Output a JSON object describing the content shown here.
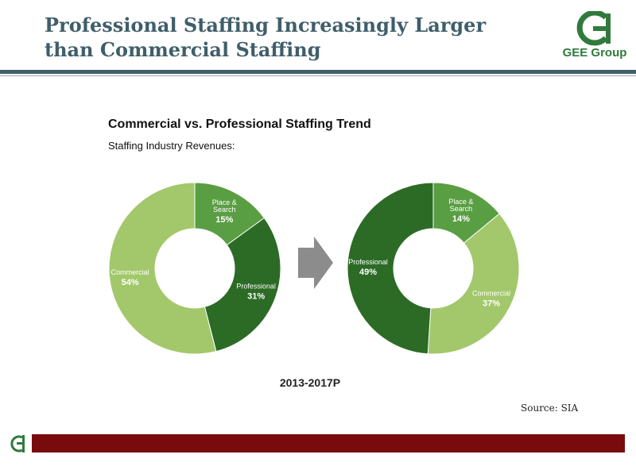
{
  "header": {
    "title_line1": "Professional Staffing Increasingly Larger",
    "title_line2": "than Commercial Staffing",
    "logo_text": "GEE Group"
  },
  "colors": {
    "title": "#3f5e6a",
    "place_search": "#5a9e44",
    "professional": "#2c6b26",
    "commercial": "#a2c86b",
    "arrow": "#8c8c8c",
    "footer_bar": "#7a0b0d",
    "logo_green": "#2f7a3c"
  },
  "chart_data": {
    "type": "pie",
    "title": "Commercial vs. Professional Staffing Trend",
    "subtitle": "Staffing Industry Revenues:",
    "period_label": "2013-2017P",
    "source": "Source: SIA",
    "charts": [
      {
        "slices": [
          {
            "label_lines": [
              "Place &",
              "Search"
            ],
            "value": 15,
            "value_label": "15%",
            "color_key": "place_search"
          },
          {
            "label_lines": [
              "Professional"
            ],
            "value": 31,
            "value_label": "31%",
            "color_key": "professional"
          },
          {
            "label_lines": [
              "Commercial"
            ],
            "value": 54,
            "value_label": "54%",
            "color_key": "commercial"
          }
        ]
      },
      {
        "slices": [
          {
            "label_lines": [
              "Place &",
              "Search"
            ],
            "value": 14,
            "value_label": "14%",
            "color_key": "place_search"
          },
          {
            "label_lines": [
              "Commercial"
            ],
            "value": 37,
            "value_label": "37%",
            "color_key": "commercial"
          },
          {
            "label_lines": [
              "Professional"
            ],
            "value": 49,
            "value_label": "49%",
            "color_key": "professional"
          }
        ]
      }
    ]
  }
}
